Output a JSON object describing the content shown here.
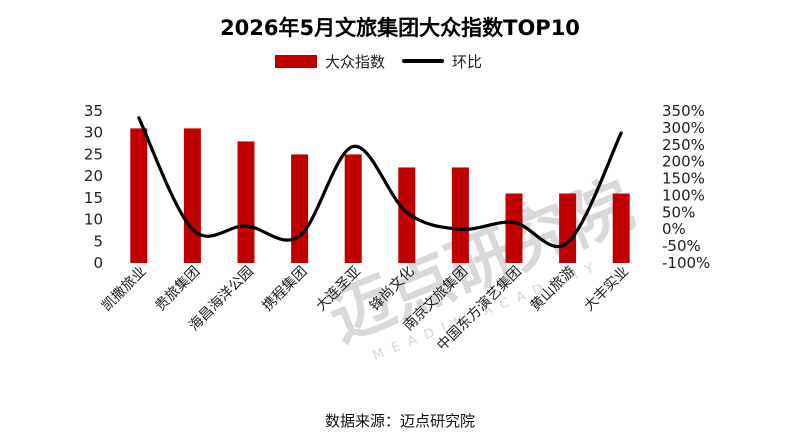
{
  "chart_data": {
    "type": "bar",
    "title": "2026年5月文旅集团大众指数TOP10",
    "categories": [
      "凯撒旅业",
      "贵旅集团",
      "海昌海洋公园",
      "携程集团",
      "大连圣亚",
      "锋尚文化",
      "南京文旅集团",
      "中国东方演艺集团",
      "黄山旅游",
      "大丰实业"
    ],
    "series": [
      {
        "name": "大众指数",
        "type": "bar",
        "axis": "left",
        "color": "#c00000",
        "values": [
          31,
          31,
          28,
          25,
          25,
          22,
          22,
          16,
          16,
          16
        ]
      },
      {
        "name": "环比",
        "type": "line",
        "axis": "right",
        "color": "#000000",
        "values": [
          330,
          0,
          10,
          -20,
          245,
          50,
          0,
          20,
          -40,
          285
        ]
      }
    ],
    "y_left": {
      "ylim": [
        0,
        35
      ],
      "ticks": [
        "0",
        "5",
        "10",
        "15",
        "20",
        "25",
        "30",
        "35"
      ]
    },
    "y_right": {
      "ylim": [
        -100,
        350
      ],
      "ticks": [
        "-100%",
        "-50%",
        "0%",
        "50%",
        "100%",
        "150%",
        "200%",
        "250%",
        "300%",
        "350%"
      ]
    },
    "legend": "top-center",
    "grid": false
  },
  "watermark": {
    "text": "迈点研究院",
    "sub": "MEADIN ACADEMY"
  },
  "source": "数据来源：迈点研究院"
}
